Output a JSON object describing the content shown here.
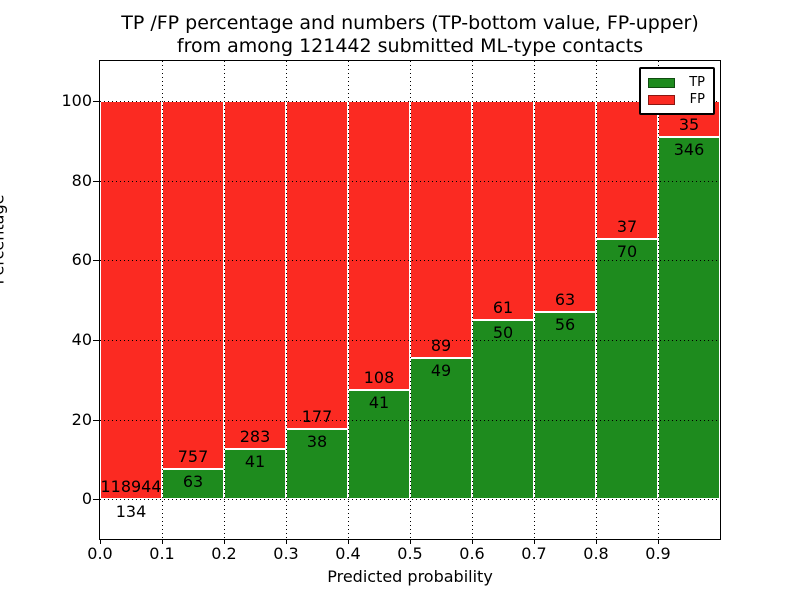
{
  "chart_data": {
    "type": "bar",
    "stacked": true,
    "title_line1": "TP /FP percentage and numbers (TP-bottom value, FP-upper)",
    "title_line2": "from among 121442 submitted ML-type contacts",
    "total_contacts": 121442,
    "xlabel": "Predicted probability",
    "ylabel": "Percentage",
    "xlim": [
      0.0,
      1.0
    ],
    "ylim": [
      -10,
      110
    ],
    "grid": "dotted",
    "x_tick_labels": [
      "0.0",
      "0.1",
      "0.2",
      "0.3",
      "0.4",
      "0.5",
      "0.6",
      "0.7",
      "0.8",
      "0.9"
    ],
    "y_tick_values": [
      0,
      20,
      40,
      60,
      80,
      100
    ],
    "legend": {
      "position": "upper right",
      "entries": [
        {
          "label": "TP",
          "color": "#1e8b1e"
        },
        {
          "label": "FP",
          "color": "#fb2a22"
        }
      ]
    },
    "tp_color": "#1e8b1e",
    "fp_color": "#fb2a22",
    "bins": [
      {
        "range": "0.0-0.1",
        "tp": 134,
        "fp": 118944
      },
      {
        "range": "0.1-0.2",
        "tp": 63,
        "fp": 757
      },
      {
        "range": "0.2-0.3",
        "tp": 41,
        "fp": 283
      },
      {
        "range": "0.3-0.4",
        "tp": 38,
        "fp": 177
      },
      {
        "range": "0.4-0.5",
        "tp": 41,
        "fp": 108
      },
      {
        "range": "0.5-0.6",
        "tp": 49,
        "fp": 89
      },
      {
        "range": "0.6-0.7",
        "tp": 50,
        "fp": 61
      },
      {
        "range": "0.7-0.8",
        "tp": 56,
        "fp": 63
      },
      {
        "range": "0.8-0.9",
        "tp": 70,
        "fp": 37
      },
      {
        "range": "0.9-1.0",
        "tp": 346,
        "fp": 35
      }
    ]
  }
}
